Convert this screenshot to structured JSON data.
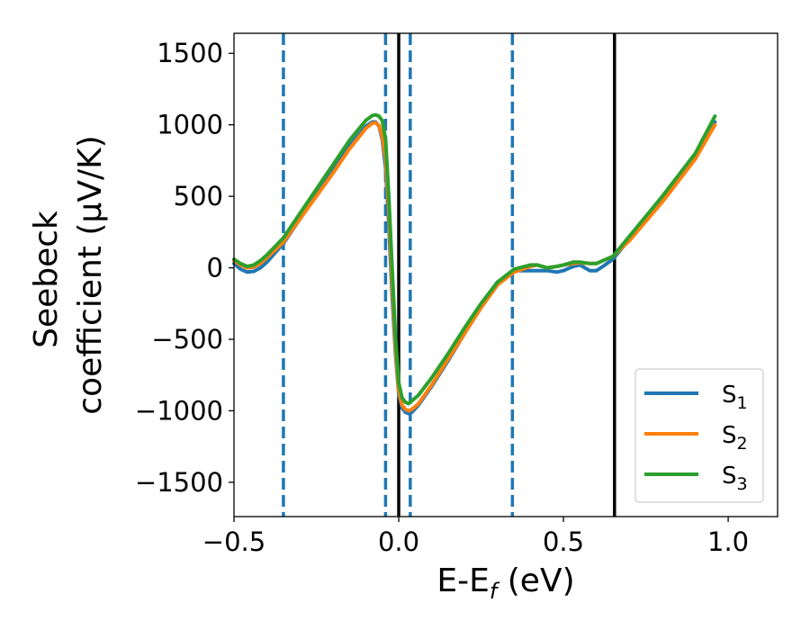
{
  "chart_data": {
    "type": "line",
    "xlabel": "E-E",
    "xlabel_sub": "f",
    "xlabel_unit": " (eV)",
    "ylabel_line1": "Seebeck",
    "ylabel_line2": "coefficient  (μV/K)",
    "xlim": [
      -0.5,
      1.15
    ],
    "ylim": [
      -1740,
      1640
    ],
    "x_ticks": [
      -0.5,
      0.0,
      0.5,
      1.0
    ],
    "x_tick_labels": [
      "−0.5",
      "0.0",
      "0.5",
      "1.0"
    ],
    "y_ticks": [
      -1500,
      -1000,
      -500,
      0,
      500,
      1000,
      1500
    ],
    "y_tick_labels": [
      "−1500",
      "−1000",
      "−500",
      "0",
      "500",
      "1000",
      "1500"
    ],
    "grid": false,
    "legend_position": "bottom-right",
    "vlines": [
      {
        "x": -0.35,
        "style": "dashed",
        "color": "#1f77b4"
      },
      {
        "x": -0.04,
        "style": "dashed",
        "color": "#1f77b4"
      },
      {
        "x": 0.035,
        "style": "dashed",
        "color": "#1f77b4"
      },
      {
        "x": 0.345,
        "style": "dashed",
        "color": "#1f77b4"
      },
      {
        "x": 0.0,
        "style": "solid",
        "color": "#000000"
      },
      {
        "x": 0.655,
        "style": "solid",
        "color": "#000000"
      }
    ],
    "series": [
      {
        "name": "S",
        "sub": "1",
        "color": "#1f77b4",
        "x": [
          -0.5,
          -0.48,
          -0.46,
          -0.44,
          -0.42,
          -0.4,
          -0.35,
          -0.3,
          -0.25,
          -0.2,
          -0.15,
          -0.1,
          -0.08,
          -0.07,
          -0.06,
          -0.05,
          -0.04,
          -0.03,
          -0.02,
          -0.01,
          0.0,
          0.01,
          0.02,
          0.03,
          0.04,
          0.06,
          0.1,
          0.15,
          0.2,
          0.25,
          0.3,
          0.35,
          0.4,
          0.45,
          0.48,
          0.5,
          0.53,
          0.55,
          0.58,
          0.6,
          0.62,
          0.65,
          0.7,
          0.8,
          0.9,
          0.96
        ],
        "y": [
          30,
          -10,
          -30,
          -25,
          0,
          40,
          170,
          340,
          510,
          680,
          850,
          990,
          1020,
          1020,
          990,
          900,
          700,
          300,
          -200,
          -600,
          -880,
          -980,
          -1010,
          -1020,
          -1010,
          -960,
          -830,
          -650,
          -460,
          -270,
          -100,
          -20,
          -20,
          -20,
          -30,
          -20,
          10,
          20,
          -20,
          -20,
          10,
          60,
          200,
          480,
          790,
          1020
        ]
      },
      {
        "name": "S",
        "sub": "2",
        "color": "#ff7f0e",
        "x": [
          -0.5,
          -0.48,
          -0.46,
          -0.44,
          -0.42,
          -0.4,
          -0.35,
          -0.3,
          -0.25,
          -0.2,
          -0.15,
          -0.1,
          -0.08,
          -0.07,
          -0.06,
          -0.05,
          -0.04,
          -0.03,
          -0.02,
          -0.01,
          0.0,
          0.01,
          0.02,
          0.03,
          0.04,
          0.06,
          0.1,
          0.15,
          0.2,
          0.25,
          0.3,
          0.35,
          0.4,
          0.42,
          0.45,
          0.48,
          0.5,
          0.53,
          0.55,
          0.58,
          0.6,
          0.62,
          0.65,
          0.7,
          0.8,
          0.9,
          0.96
        ],
        "y": [
          50,
          20,
          0,
          5,
          30,
          70,
          180,
          340,
          500,
          660,
          830,
          975,
          1010,
          1015,
          995,
          920,
          760,
          400,
          -120,
          -560,
          -860,
          -960,
          -990,
          -1000,
          -990,
          -950,
          -820,
          -640,
          -460,
          -280,
          -120,
          -30,
          10,
          20,
          0,
          10,
          20,
          30,
          35,
          30,
          30,
          50,
          80,
          190,
          460,
          760,
          1000
        ]
      },
      {
        "name": "S",
        "sub": "3",
        "color": "#2ca02c",
        "x": [
          -0.5,
          -0.48,
          -0.46,
          -0.44,
          -0.42,
          -0.4,
          -0.35,
          -0.3,
          -0.25,
          -0.2,
          -0.15,
          -0.1,
          -0.08,
          -0.07,
          -0.06,
          -0.05,
          -0.04,
          -0.03,
          -0.02,
          -0.01,
          0.0,
          0.01,
          0.02,
          0.03,
          0.04,
          0.06,
          0.1,
          0.15,
          0.2,
          0.25,
          0.3,
          0.35,
          0.4,
          0.42,
          0.45,
          0.48,
          0.5,
          0.53,
          0.55,
          0.58,
          0.6,
          0.62,
          0.65,
          0.7,
          0.8,
          0.9,
          0.96
        ],
        "y": [
          60,
          30,
          10,
          20,
          50,
          90,
          210,
          380,
          550,
          720,
          890,
          1030,
          1065,
          1070,
          1060,
          1030,
          900,
          500,
          0,
          -480,
          -800,
          -910,
          -940,
          -950,
          -930,
          -890,
          -770,
          -600,
          -420,
          -250,
          -100,
          -10,
          20,
          20,
          0,
          10,
          20,
          40,
          40,
          30,
          30,
          50,
          80,
          220,
          500,
          800,
          1060
        ]
      }
    ]
  }
}
